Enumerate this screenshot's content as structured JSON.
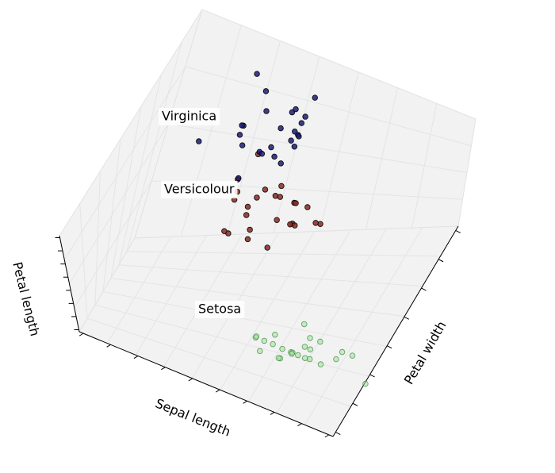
{
  "chart_data": {
    "type": "scatter3d",
    "xlabel": "Petal width",
    "ylabel": "Sepal length",
    "zlabel": "Petal length",
    "series": [
      {
        "name": "Setosa",
        "color": "#98e898",
        "edge": "#3c7a3c",
        "x": [
          0.2,
          0.2,
          0.2,
          0.2,
          0.2,
          0.4,
          0.3,
          0.2,
          0.2,
          0.1,
          0.2,
          0.2,
          0.1,
          0.1,
          0.2,
          0.4,
          0.4,
          0.3,
          0.3,
          0.3,
          0.2,
          0.4,
          0.2,
          0.5,
          0.2
        ],
        "y": [
          5.1,
          4.9,
          4.7,
          4.6,
          5.0,
          5.4,
          4.6,
          5.0,
          4.4,
          4.9,
          5.4,
          4.8,
          4.8,
          4.3,
          5.8,
          5.7,
          5.4,
          5.1,
          5.7,
          5.1,
          5.4,
          5.1,
          4.6,
          5.1,
          4.8
        ],
        "z": [
          1.4,
          1.4,
          1.3,
          1.5,
          1.4,
          1.7,
          1.4,
          1.5,
          1.4,
          1.5,
          1.5,
          1.6,
          1.4,
          1.1,
          1.2,
          1.5,
          1.3,
          1.4,
          1.7,
          1.5,
          1.7,
          1.5,
          1.0,
          1.7,
          1.9
        ]
      },
      {
        "name": "Versicolour",
        "color": "#8a2a22",
        "edge": "#000000",
        "x": [
          1.4,
          1.5,
          1.5,
          1.3,
          1.5,
          1.3,
          1.6,
          1.0,
          1.3,
          1.4,
          1.0,
          1.5,
          1.0,
          1.4,
          1.3,
          1.4,
          1.5,
          1.0,
          1.5,
          1.1,
          1.8,
          1.3,
          1.5,
          1.2,
          1.3
        ],
        "y": [
          7.0,
          6.4,
          6.9,
          5.5,
          6.5,
          5.7,
          6.3,
          4.9,
          6.6,
          5.2,
          5.0,
          5.9,
          6.0,
          6.1,
          5.6,
          6.7,
          5.6,
          5.8,
          6.2,
          5.6,
          5.9,
          6.1,
          6.3,
          6.1,
          6.4
        ],
        "z": [
          4.7,
          4.5,
          4.9,
          4.0,
          4.6,
          4.5,
          4.7,
          3.3,
          4.6,
          3.9,
          3.5,
          4.2,
          4.0,
          4.7,
          3.6,
          4.4,
          4.5,
          4.1,
          4.5,
          3.9,
          4.8,
          4.0,
          4.9,
          4.7,
          4.3
        ]
      },
      {
        "name": "Virginica",
        "color": "#1c1c78",
        "edge": "#000000",
        "x": [
          2.5,
          1.9,
          2.1,
          1.8,
          2.2,
          2.1,
          1.7,
          1.8,
          1.8,
          2.5,
          2.0,
          1.9,
          2.1,
          2.0,
          2.4,
          2.3,
          1.8,
          2.2,
          2.3,
          1.5,
          2.3,
          2.0,
          2.0,
          1.8,
          2.1
        ],
        "y": [
          6.3,
          5.8,
          7.1,
          6.3,
          6.5,
          7.6,
          4.9,
          7.3,
          6.7,
          7.2,
          6.5,
          6.4,
          6.8,
          5.7,
          5.8,
          6.4,
          6.5,
          7.7,
          7.7,
          6.0,
          6.9,
          5.6,
          7.7,
          6.3,
          6.7
        ],
        "z": [
          6.0,
          5.1,
          5.9,
          5.6,
          5.8,
          6.6,
          4.5,
          6.3,
          5.8,
          6.1,
          5.1,
          5.3,
          5.5,
          5.0,
          5.1,
          5.3,
          5.5,
          6.7,
          6.9,
          5.0,
          5.7,
          4.9,
          6.7,
          4.9,
          5.7
        ]
      }
    ]
  }
}
